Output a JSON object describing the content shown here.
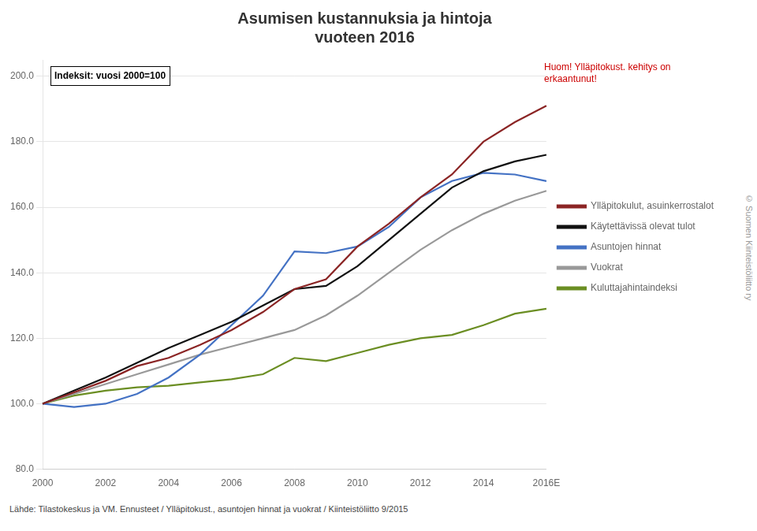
{
  "chart_data": {
    "type": "line",
    "title": "Asumisen kustannuksia ja hintoja\nvuoteen 2016",
    "subtitle": "Indeksit: vuosi 2000=100",
    "annotations": [
      {
        "text": "Huom! Ylläpitokust. kehitys on\nerkaantunut!",
        "color": "#CC0000"
      },
      {
        "text": "Lähde: Tilastokeskus ja VM. Ennusteet / Ylläpitokust., asuntojen hinnat ja vuokrat / Kiinteistöliitto 9/2015"
      },
      {
        "text": "© Suomen Kiinteistöliitto ry"
      }
    ],
    "categories": [
      "2000",
      null,
      "2002",
      null,
      "2004",
      null,
      "2006",
      null,
      "2008",
      null,
      "2010",
      null,
      "2012",
      null,
      "2014",
      null,
      "2016E"
    ],
    "series": [
      {
        "name": "Ylläpitokulut, asuinkerrostalot",
        "color": "#8B2525",
        "values": [
          100.0,
          103.5,
          107.0,
          111.5,
          114.0,
          118.0,
          122.5,
          128.0,
          135.0,
          138.0,
          148.0,
          155.0,
          163.0,
          170.0,
          180.0,
          186.0,
          191.0
        ]
      },
      {
        "name": "Käytettävissä olevat tulot",
        "color": "#111111",
        "values": [
          100.0,
          104.0,
          108.0,
          112.5,
          117.0,
          121.0,
          125.0,
          130.0,
          135.0,
          136.0,
          142.0,
          150.0,
          158.0,
          166.0,
          171.0,
          174.0,
          176.0
        ]
      },
      {
        "name": "Asuntojen hinnat",
        "color": "#4472C4",
        "values": [
          100.0,
          99.0,
          100.0,
          103.0,
          108.0,
          115.0,
          124.0,
          133.0,
          146.5,
          146.0,
          148.0,
          154.0,
          163.0,
          168.0,
          170.5,
          170.0,
          168.0
        ]
      },
      {
        "name": "Vuokrat",
        "color": "#999999",
        "values": [
          100.0,
          103.0,
          106.0,
          109.0,
          112.0,
          115.0,
          117.5,
          120.0,
          122.5,
          127.0,
          133.0,
          140.0,
          147.0,
          153.0,
          158.0,
          162.0,
          165.0
        ]
      },
      {
        "name": "Kuluttajahintaindeksi",
        "color": "#6B8E23",
        "values": [
          100.0,
          102.5,
          104.0,
          105.0,
          105.5,
          106.5,
          107.5,
          109.0,
          114.0,
          113.0,
          115.5,
          118.0,
          120.0,
          121.0,
          124.0,
          127.5,
          129.0
        ]
      }
    ],
    "ylim": [
      80.0,
      205.0
    ],
    "yticks": [
      {
        "value": 80,
        "label": "80.0"
      },
      {
        "value": 100,
        "label": "100.0"
      },
      {
        "value": 120,
        "label": "120.0"
      },
      {
        "value": 140,
        "label": "140.0"
      },
      {
        "value": 160,
        "label": "160.0"
      },
      {
        "value": 180,
        "label": "180.0"
      },
      {
        "value": 200,
        "label": "200.0"
      }
    ],
    "grid": true,
    "legend": "right"
  }
}
